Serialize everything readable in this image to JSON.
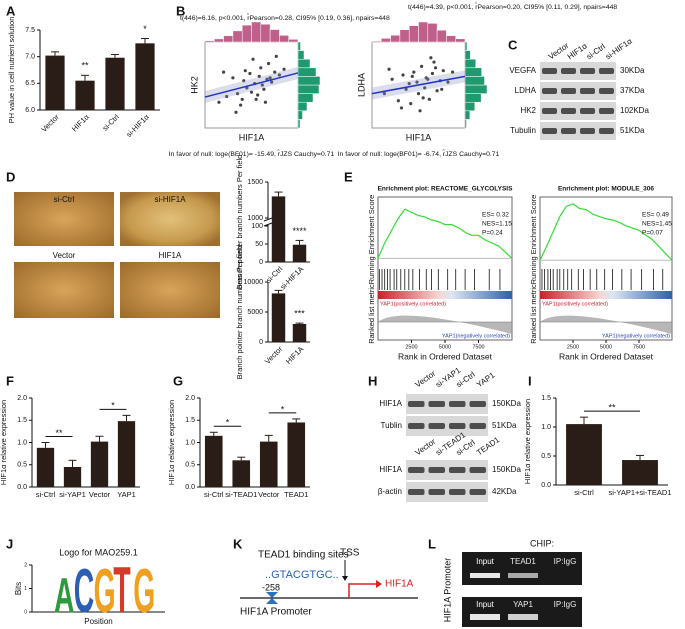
{
  "panels": [
    "A",
    "B",
    "C",
    "D",
    "E",
    "F",
    "G",
    "H",
    "I",
    "J",
    "K",
    "L"
  ],
  "chart_data": [
    {
      "type": "bar",
      "y_label": "PH value in cell nutrient solution",
      "categories": [
        "Vector",
        "HIF1α",
        "si-Ctrl",
        "si-HIF1α"
      ],
      "values": [
        7.02,
        6.55,
        6.98,
        7.25
      ],
      "errors": [
        0.07,
        0.1,
        0.06,
        0.09
      ],
      "color": "#2a1c16",
      "ylim": [
        6.0,
        7.5
      ],
      "yticks": [
        {
          "value": 6.0,
          "label": "6.0"
        },
        {
          "value": 6.5,
          "label": "6.5"
        },
        {
          "value": 7.0,
          "label": "7.0"
        },
        {
          "value": 7.5,
          "label": "7.5"
        }
      ],
      "rotate_labels": true,
      "annotations": [
        {
          "between": [
            "HIF1α"
          ],
          "label": "**"
        },
        {
          "between": [
            "si-HIF1α"
          ],
          "label": "*"
        }
      ]
    },
    {
      "type": "bar",
      "y_label": "Branch pointer branch numbers Per field",
      "categories": [
        "si-Ctrl",
        "si-HIF1A"
      ],
      "values": [
        1300,
        48
      ],
      "errors": [
        60,
        12
      ],
      "color": "#2a1c16",
      "ylim": [
        0,
        1500
      ],
      "yticks": [
        0,
        50,
        100,
        1000,
        1500
      ],
      "axis_break": [
        100,
        1000
      ],
      "rotate_labels": true,
      "annotations": [
        {
          "between": [
            "si-HIF1A"
          ],
          "label": "****"
        }
      ]
    },
    {
      "type": "bar",
      "y_label": "Branch pointer branch numbers Per field",
      "categories": [
        "Vector",
        "HIF1A"
      ],
      "values": [
        8100,
        3000
      ],
      "errors": [
        500,
        150
      ],
      "color": "#2a1c16",
      "ylim": [
        0,
        10000
      ],
      "yticks": [
        0,
        5000,
        10000
      ],
      "rotate_labels": true,
      "annotations": [
        {
          "between": [
            "HIF1A"
          ],
          "label": "***"
        }
      ]
    },
    {
      "type": "bar",
      "y_label": "HIF1α  relative expression",
      "categories": [
        "si-Ctrl",
        "si-YAP1",
        "Vector",
        "YAP1"
      ],
      "values": [
        0.88,
        0.45,
        1.02,
        1.48
      ],
      "errors": [
        0.12,
        0.15,
        0.12,
        0.13
      ],
      "color": "#2a1c16",
      "ylim": [
        0,
        2
      ],
      "yticks": [
        {
          "value": 0,
          "label": "0.0"
        },
        {
          "value": 0.5,
          "label": "0.5"
        },
        {
          "value": 1,
          "label": "1.0"
        },
        {
          "value": 1.5,
          "label": "1.5"
        },
        {
          "value": 2,
          "label": "2.0"
        }
      ],
      "rotate_labels": false,
      "annotations": [
        {
          "between": [
            "si-Ctrl",
            "si-YAP1"
          ],
          "label": "**"
        },
        {
          "between": [
            "Vector",
            "YAP1"
          ],
          "label": "*"
        }
      ]
    },
    {
      "type": "bar",
      "y_label": "HIF1α  relative expression",
      "categories": [
        "si-Ctrl",
        "si-TEAD1",
        "Vector",
        "TEAD1"
      ],
      "values": [
        1.15,
        0.6,
        1.02,
        1.45
      ],
      "errors": [
        0.08,
        0.07,
        0.14,
        0.08
      ],
      "color": "#2a1c16",
      "ylim": [
        0,
        2
      ],
      "yticks": [
        {
          "value": 0,
          "label": "0.0"
        },
        {
          "value": 0.5,
          "label": "0.5"
        },
        {
          "value": 1,
          "label": "1.0"
        },
        {
          "value": 1.5,
          "label": "1.5"
        },
        {
          "value": 2,
          "label": "2.0"
        }
      ],
      "rotate_labels": false,
      "annotations": [
        {
          "between": [
            "si-Ctrl",
            "si-TEAD1"
          ],
          "label": "*"
        },
        {
          "between": [
            "Vector",
            "TEAD1"
          ],
          "label": "*"
        }
      ]
    },
    {
      "type": "bar",
      "y_label": "HIF1α  relative expression",
      "categories": [
        "si-Ctrl",
        "si-YAP1+si-TEAD1"
      ],
      "values": [
        1.05,
        0.43
      ],
      "errors": [
        0.12,
        0.08
      ],
      "color": "#2a1c16",
      "ylim": [
        0,
        1.5
      ],
      "yticks": [
        {
          "value": 0,
          "label": "0.0"
        },
        {
          "value": 0.5,
          "label": "0.5"
        },
        {
          "value": 1,
          "label": "1.0"
        },
        {
          "value": 1.5,
          "label": "1.5"
        }
      ],
      "rotate_labels": false,
      "annotations": [
        {
          "between": [
            "si-Ctrl",
            "si-YAP1+si-TEAD1"
          ],
          "label": "**"
        }
      ]
    },
    {
      "type": "scatter",
      "subtitle": "t(446)=6.16, p<0.001, r̂Pearson=0.28, CI95% [0.19, 0.36], npairs=448",
      "x_label": "HIF1A",
      "y_label": "HK2",
      "note": "In favor of null: loge(BF01)= -15.49, r̂JZS Cauchy=0.71",
      "color": "#444444",
      "fit_color": "#2233cc",
      "xlim": [
        -3,
        3
      ],
      "ylim": [
        -3,
        3
      ],
      "x": [
        -2.1,
        -1.6,
        -1.2,
        -0.9,
        -0.7,
        -0.5,
        -0.3,
        -0.1,
        0.0,
        0.2,
        0.3,
        0.5,
        0.6,
        0.8,
        1.0,
        1.1,
        1.3,
        1.5,
        1.8,
        2.1,
        -1.0,
        -0.4,
        0.4,
        0.9,
        1.6,
        -1.8,
        0.1,
        0.7,
        -0.6,
        1.2
      ],
      "y": [
        -1.2,
        -0.8,
        0.5,
        -0.6,
        -1.4,
        0.3,
        -0.2,
        0.8,
        -0.5,
        0.1,
        -1.0,
        0.6,
        1.2,
        -0.3,
        0.4,
        1.5,
        0.2,
        0.9,
        0.7,
        1.1,
        -1.9,
        1.0,
        -0.7,
        -1.2,
        2.0,
        0.9,
        1.8,
        0.0,
        -1.0,
        0.5
      ],
      "fit": {
        "x": [
          -3,
          3
        ],
        "y": [
          -0.84,
          0.84
        ]
      },
      "x_bins": [
        -3,
        -2.4,
        -1.8,
        -1.2,
        -0.6,
        0,
        0.6,
        1.2,
        1.8,
        2.4,
        3
      ],
      "x_hist": [
        3,
        7,
        14,
        25,
        38,
        45,
        40,
        28,
        15,
        6
      ],
      "x_hist_color": "#c0608a",
      "y_bins": [
        -3,
        -2.4,
        -1.8,
        -1.2,
        -0.6,
        0,
        0.6,
        1.2,
        1.8,
        2.4,
        3
      ],
      "y_hist": [
        4,
        9,
        18,
        30,
        42,
        44,
        36,
        24,
        12,
        5
      ],
      "y_hist_color": "#1e9a6e"
    },
    {
      "type": "scatter",
      "subtitle": "t(446)=4.39, p<0.001, r̂Pearson=0.20, CI95% [0.11, 0.29], npairs=448",
      "x_label": "HIF1A",
      "y_label": "LDHA",
      "note": "In favor of null: loge(BF01)= -6.74, r̂JZS Cauchy=0.71",
      "color": "#444444",
      "fit_color": "#2233cc",
      "xlim": [
        -3,
        3
      ],
      "ylim": [
        -3,
        3
      ],
      "x": [
        -2.2,
        -1.7,
        -1.3,
        -1.0,
        -0.8,
        -0.5,
        -0.3,
        -0.1,
        0.0,
        0.2,
        0.4,
        0.5,
        0.7,
        0.9,
        1.0,
        1.2,
        1.4,
        1.6,
        1.9,
        2.2,
        -1.1,
        -0.4,
        0.3,
        0.8,
        1.5,
        -1.9,
        0.1,
        0.6,
        -0.6,
        1.1
      ],
      "y": [
        -0.6,
        0.4,
        -1.1,
        0.7,
        -0.3,
        -1.3,
        0.9,
        0.2,
        -0.6,
        1.3,
        -0.2,
        0.5,
        -1.0,
        0.8,
        1.6,
        -0.4,
        0.3,
        1.0,
        0.2,
        0.9,
        -1.6,
        0.6,
        -0.9,
        1.9,
        -0.3,
        1.1,
        -1.8,
        0.4,
        0.1,
        1.2
      ],
      "fit": {
        "x": [
          -3,
          3
        ],
        "y": [
          -0.6,
          0.6
        ]
      },
      "x_bins": [
        -3,
        -2.4,
        -1.8,
        -1.2,
        -0.6,
        0,
        0.6,
        1.2,
        1.8,
        2.4,
        3
      ],
      "x_hist": [
        2,
        8,
        15,
        27,
        36,
        44,
        41,
        26,
        14,
        7
      ],
      "x_hist_color": "#c0608a",
      "y_bins": [
        -3,
        -2.4,
        -1.8,
        -1.2,
        -0.6,
        0,
        0.6,
        1.2,
        1.8,
        2.4,
        3
      ],
      "y_hist": [
        3,
        10,
        20,
        33,
        45,
        40,
        34,
        22,
        11,
        4
      ],
      "y_hist_color": "#1e9a6e"
    },
    {
      "type": "gsea",
      "title": "Enrichment plot: REACTOME_GLYCOLYSIS",
      "y_label": "Running Enrichment Score",
      "metric_label": "Ranked list metric",
      "x_label": "Rank in Ordered Dataset",
      "annotations": [
        "ES= 0.32",
        "NES=1.15",
        "P=0.24"
      ],
      "pos_label": "YAP1(positively correlated)",
      "neg_label": "YAP1(negatively correlated)",
      "color": "#33dd33",
      "xlim": [
        0,
        10000
      ],
      "xticks": [
        2500,
        5000,
        7500
      ],
      "ylim": [
        -0.05,
        0.4
      ],
      "x": [
        0,
        500,
        1000,
        1500,
        2000,
        2500,
        3000,
        3500,
        4000,
        4500,
        5000,
        5500,
        6000,
        6500,
        7000,
        7500,
        8000,
        8500,
        9000,
        9500,
        10000
      ],
      "es": [
        0,
        0.1,
        0.18,
        0.26,
        0.32,
        0.3,
        0.28,
        0.27,
        0.25,
        0.24,
        0.22,
        0.22,
        0.2,
        0.17,
        0.15,
        0.15,
        0.12,
        0.1,
        0.08,
        0.04,
        0
      ],
      "hits": [
        100,
        300,
        500,
        700,
        900,
        1200,
        1400,
        1700,
        2000,
        2300,
        2600,
        3100,
        3600,
        4000,
        4500,
        5200,
        5800,
        6500,
        7200,
        8300,
        9100
      ]
    },
    {
      "type": "gsea",
      "title": "Enrichment plot: MODULE_306",
      "y_label": "Running Enrichment Score",
      "metric_label": "Ranked list metric",
      "x_label": "Rank in Ordered Dataset",
      "annotations": [
        "ES= 0.49",
        "NES=1.45",
        "P=0.07"
      ],
      "pos_label": "YAP1(positively correlated)",
      "neg_label": "YAP1(negatively correlated)",
      "color": "#33dd33",
      "xlim": [
        0,
        10000
      ],
      "xticks": [
        2500,
        5000,
        7500
      ],
      "ylim": [
        -0.05,
        0.55
      ],
      "x": [
        0,
        500,
        1000,
        1500,
        2000,
        2500,
        3000,
        3500,
        4000,
        4500,
        5000,
        5500,
        6000,
        6500,
        7000,
        7500,
        8000,
        8500,
        9000,
        9500,
        10000
      ],
      "es": [
        0,
        0.12,
        0.25,
        0.38,
        0.47,
        0.49,
        0.45,
        0.44,
        0.4,
        0.38,
        0.36,
        0.35,
        0.33,
        0.3,
        0.28,
        0.26,
        0.22,
        0.18,
        0.12,
        0.06,
        0
      ],
      "hits": [
        150,
        350,
        600,
        800,
        1000,
        1300,
        1500,
        1800,
        2100,
        2400,
        2900,
        3300,
        3800,
        4300,
        4900,
        5500,
        6200,
        6900,
        7700,
        8600,
        9300
      ]
    },
    {
      "type": "logo",
      "title": "Logo for MAO259.1",
      "x_label": "Position",
      "y_label": "Bits",
      "ylim": [
        0,
        2
      ],
      "yticks": [
        0,
        1,
        2
      ],
      "letters": [
        "A",
        "C",
        "G",
        "T",
        "G"
      ],
      "bits": [
        1.5,
        1.9,
        1.9,
        2.0,
        1.9
      ],
      "colors": [
        "#2e9a3c",
        "#2b5fb4",
        "#f0a020",
        "#d23a2a",
        "#f0a020"
      ]
    }
  ],
  "blot_c": {
    "lanes": [
      "Vector",
      "HIF1α",
      "si-Ctrl",
      "si-HIF1α"
    ],
    "rows": [
      {
        "name": "VEGFA",
        "size": "30KDa"
      },
      {
        "name": "LDHA",
        "size": "37KDa"
      },
      {
        "name": "HK2",
        "size": "102KDa"
      },
      {
        "name": "Tubulin",
        "size": "51KDa"
      }
    ]
  },
  "blot_h": [
    {
      "lanes": [
        "Vector",
        "si-YAP1",
        "si-Ctrl",
        "YAP1"
      ],
      "rows": [
        {
          "name": "HIF1A",
          "size": "150KDa"
        },
        {
          "name": "Tublin",
          "size": "51KDa"
        }
      ]
    },
    {
      "lanes": [
        "Vector",
        "si-TEAD1",
        "si-Ctrl",
        "TEAD1"
      ],
      "rows": [
        {
          "name": "HIF1A",
          "size": "150KDa"
        },
        {
          "name": "β-actin",
          "size": "42KDa"
        }
      ]
    }
  ],
  "images": [
    "si-Ctrl",
    "si-HIF1A",
    "Vector",
    "HIF1A"
  ],
  "promoter": {
    "site_label": "TEAD1 binding sites",
    "sequence": "..GTACGTGC..",
    "position": "-258",
    "tss": "TSS",
    "gene": "HIF1A",
    "promoter": "HIF1A Promoter"
  },
  "chip": {
    "title": "CHIP:",
    "axis_label": "HIF1A Promoter",
    "rows": [
      [
        "Input",
        "TEAD1",
        "IP:IgG"
      ],
      [
        "Input",
        "YAP1",
        "IP:IgG"
      ]
    ]
  }
}
